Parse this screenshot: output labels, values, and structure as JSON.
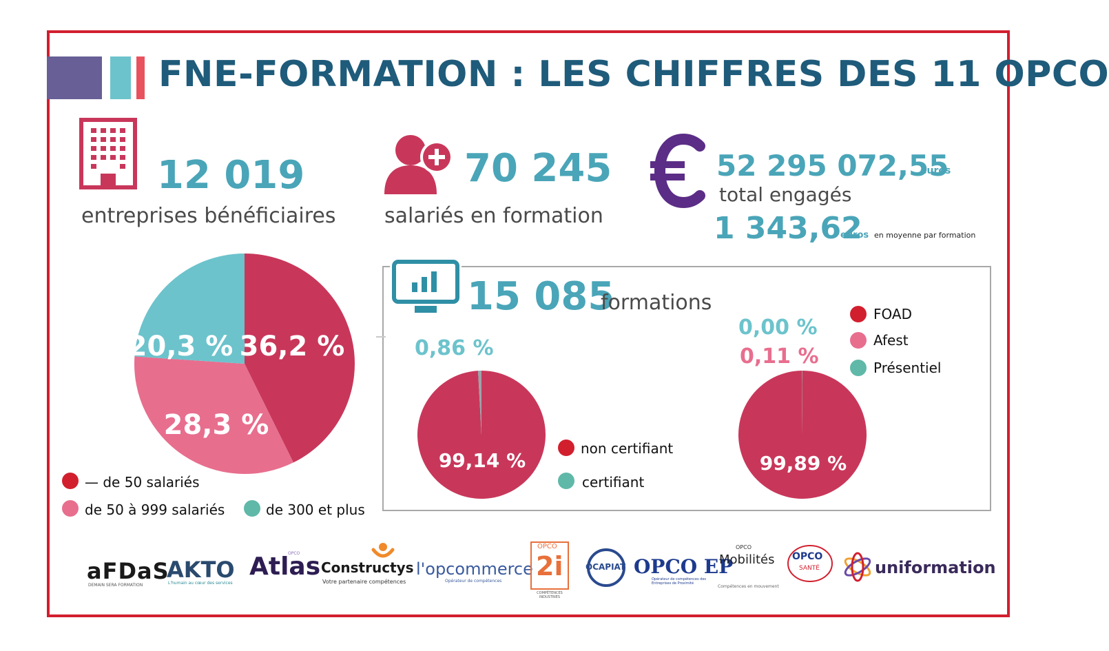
{
  "header": {
    "title": "FNE-FORMATION : LES CHIFFRES DES 11 OPCO"
  },
  "colors": {
    "red_frame": "#d21f2e",
    "crimson": "#c8375a",
    "pink": "#e86e8e",
    "teal": "#6cc3cc",
    "title_blue": "#1f5b7a",
    "number_teal": "#4aa5b8",
    "euro_purple": "#5b2d86"
  },
  "stats": {
    "companies": {
      "value": "12 019",
      "label": "entreprises bénéficiaires",
      "icon": "building-icon"
    },
    "employees": {
      "value": "70 245",
      "label": "salariés en formation",
      "icon": "user-plus-icon"
    },
    "total": {
      "value": "52 295 072,55",
      "unit": "euros",
      "label": "total engagés",
      "icon": "euro-icon"
    },
    "average": {
      "value": "1 343,62",
      "unit": "euros",
      "suffix": "en moyenne par formation"
    },
    "formations": {
      "value": "15 085",
      "label": "formations",
      "icon": "monitor-chart-icon"
    }
  },
  "chart_data": [
    {
      "type": "pie",
      "labels": [
        "— de 50 salariés",
        "de 50 à 999 salariés",
        "de 300 et plus"
      ],
      "values": [
        36.2,
        28.3,
        20.3
      ],
      "value_labels": [
        "36,2 %",
        "28,3 %",
        "20,3 %"
      ],
      "colors": [
        "#c8375a",
        "#e86e8e",
        "#6cc3cc"
      ],
      "legend": [
        "— de 50 salariés",
        "de 50 à 999 salariés",
        "de 300 et plus"
      ]
    },
    {
      "type": "pie",
      "labels": [
        "non certifiant",
        "certifiant"
      ],
      "values": [
        99.14,
        0.86
      ],
      "value_labels": [
        "99,14 %",
        "0,86 %"
      ],
      "colors": [
        "#c8375a",
        "#9aa4aa"
      ],
      "legend": [
        "non certifiant",
        "certifiant"
      ],
      "legend_colors": [
        "#d21f2e",
        "#5fb8a8"
      ]
    },
    {
      "type": "pie",
      "labels": [
        "FOAD",
        "Afest",
        "Présentiel"
      ],
      "values": [
        99.89,
        0.11,
        0.0
      ],
      "value_labels": [
        "99,89 %",
        "0,11 %",
        "0,00 %"
      ],
      "colors": [
        "#c8375a",
        "#9aa4aa",
        "#6cc3cc"
      ],
      "legend": [
        "FOAD",
        "Afest",
        "Présentiel"
      ],
      "legend_colors": [
        "#d21f2e",
        "#e86e8e",
        "#5fb8a8"
      ]
    }
  ],
  "logos": {
    "afdas": "aFDaS",
    "afdas_sub": "DEMAIN SERA FORMATION",
    "akto": "AKTO",
    "akto_sub": "L'humain au cœur des services",
    "atlas": "Atlas",
    "atlas_sup": "OPCO",
    "constructys": "Constructys",
    "constructys_sub": "Votre partenaire compétences",
    "opcommerce": "l'opcommerce",
    "opcommerce_sub": "Opérateur de compétences",
    "opco2i_top": "OPCO",
    "opco2i": "2i",
    "opco2i_sub": "COMPÉTENCES INDUSTRIES",
    "ocapiat": "OCAPIAT",
    "opcoep": "OPCO EP",
    "opcoep_sub": "Opérateur de compétences des Entreprises de Proximité",
    "mobilites_top": "OPCO",
    "mobilites": "Mobilités",
    "mobilites_sub": "Compétences en mouvement",
    "sante_top": "OPCO",
    "sante": "SANTÉ",
    "uniformation": "uniformation"
  }
}
